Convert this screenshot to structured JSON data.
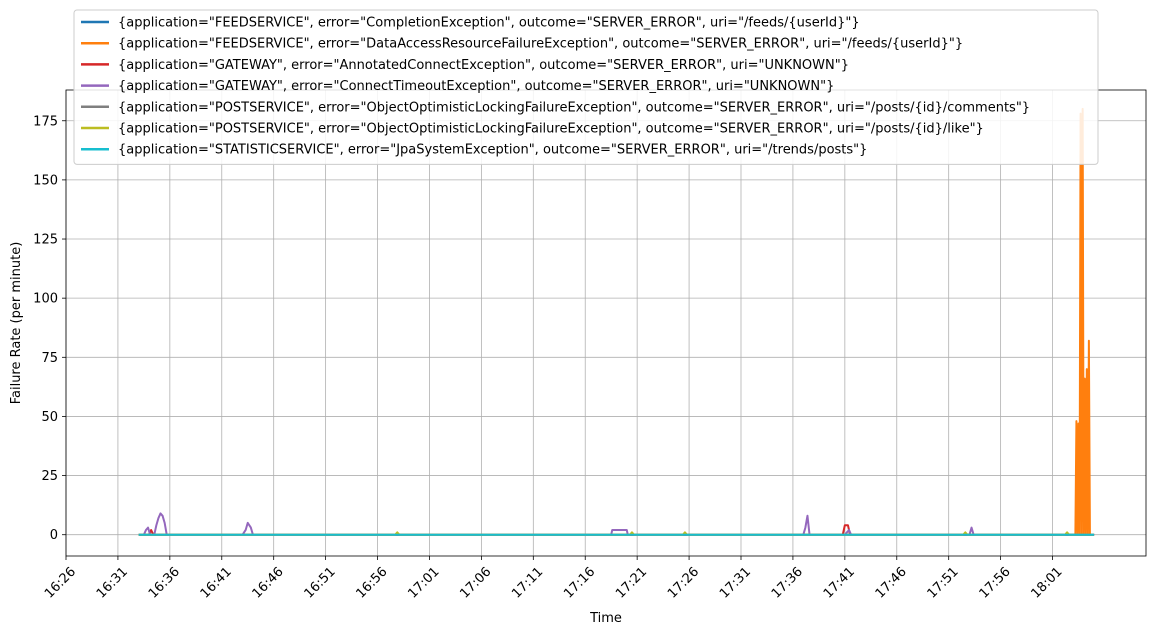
{
  "chart_data": {
    "type": "line",
    "title": "",
    "xlabel": "Time",
    "ylabel": "Failure Rate (per minute)",
    "xlim": [
      "16:26",
      "18:10"
    ],
    "ylim": [
      -9,
      188
    ],
    "grid": true,
    "legend_position": "top-left (above plot)",
    "x_tick_labels": [
      "16:26",
      "16:31",
      "16:36",
      "16:41",
      "16:46",
      "16:51",
      "16:56",
      "17:01",
      "17:06",
      "17:11",
      "17:16",
      "17:21",
      "17:26",
      "17:31",
      "17:36",
      "17:41",
      "17:46",
      "17:51",
      "17:56",
      "18:01"
    ],
    "y_ticks": [
      0,
      25,
      50,
      75,
      100,
      125,
      150,
      175
    ],
    "series": [
      {
        "name": "{application=\"FEEDSERVICE\", error=\"CompletionException\", outcome=\"SERVER_ERROR\", uri=\"/feeds/{userId}\"}",
        "color": "#1f77b4",
        "points": [
          [
            "16:33",
            0
          ],
          [
            "18:05",
            0
          ]
        ]
      },
      {
        "name": "{application=\"FEEDSERVICE\", error=\"DataAccessResourceFailureException\", outcome=\"SERVER_ERROR\", uri=\"/feeds/{userId}\"}",
        "color": "#ff7f0e",
        "points": [
          [
            "16:33",
            0
          ],
          [
            "18:03",
            0
          ],
          [
            "18:03.2",
            0
          ],
          [
            "18:03.3",
            48
          ],
          [
            "18:03.4",
            0
          ],
          [
            "18:03.5",
            47
          ],
          [
            "18:03.6",
            0
          ],
          [
            "18:03.7",
            178
          ],
          [
            "18:03.8",
            0
          ],
          [
            "18:03.9",
            180
          ],
          [
            "18:04",
            0
          ],
          [
            "18:04.1",
            66
          ],
          [
            "18:04.2",
            0
          ],
          [
            "18:04.3",
            70
          ],
          [
            "18:04.4",
            0
          ],
          [
            "18:04.5",
            82
          ],
          [
            "18:04.6",
            0
          ]
        ]
      },
      {
        "name": "{application=\"GATEWAY\", error=\"AnnotatedConnectException\", outcome=\"SERVER_ERROR\", uri=\"UNKNOWN\"}",
        "color": "#d62728",
        "points": [
          [
            "16:33",
            0
          ],
          [
            "16:34",
            0
          ],
          [
            "16:34.2",
            2
          ],
          [
            "16:34.4",
            0
          ],
          [
            "17:40.8",
            0
          ],
          [
            "17:41",
            4
          ],
          [
            "17:41.3",
            4
          ],
          [
            "17:41.5",
            0
          ],
          [
            "18:05",
            0
          ]
        ]
      },
      {
        "name": "{application=\"GATEWAY\", error=\"ConnectTimeoutException\", outcome=\"SERVER_ERROR\", uri=\"UNKNOWN\"}",
        "color": "#9467bd",
        "points": [
          [
            "16:33",
            0
          ],
          [
            "16:33.5",
            0
          ],
          [
            "16:33.7",
            2
          ],
          [
            "16:33.9",
            3
          ],
          [
            "16:34.1",
            0
          ],
          [
            "16:34.5",
            0
          ],
          [
            "16:34.7",
            4
          ],
          [
            "16:34.9",
            7
          ],
          [
            "16:35.1",
            9
          ],
          [
            "16:35.3",
            8
          ],
          [
            "16:35.5",
            5
          ],
          [
            "16:35.7",
            0
          ],
          [
            "16:43",
            0
          ],
          [
            "16:43.3",
            2
          ],
          [
            "16:43.5",
            5
          ],
          [
            "16:43.8",
            3
          ],
          [
            "16:44",
            0
          ],
          [
            "17:18.5",
            0
          ],
          [
            "17:18.6",
            2
          ],
          [
            "17:20",
            2
          ],
          [
            "17:20.1",
            0
          ],
          [
            "17:37",
            0
          ],
          [
            "17:37.2",
            3
          ],
          [
            "17:37.4",
            8
          ],
          [
            "17:37.6",
            0
          ],
          [
            "17:41",
            0
          ],
          [
            "17:41.4",
            2
          ],
          [
            "17:41.6",
            0
          ],
          [
            "17:53",
            0
          ],
          [
            "17:53.2",
            3
          ],
          [
            "17:53.4",
            0
          ],
          [
            "18:05",
            0
          ]
        ]
      },
      {
        "name": "{application=\"POSTSERVICE\", error=\"ObjectOptimisticLockingFailureException\", outcome=\"SERVER_ERROR\", uri=\"/posts/{id}/comments\"}",
        "color": "#7f7f7f",
        "points": [
          [
            "16:33",
            0
          ],
          [
            "18:05",
            0
          ]
        ]
      },
      {
        "name": "{application=\"POSTSERVICE\", error=\"ObjectOptimisticLockingFailureException\", outcome=\"SERVER_ERROR\", uri=\"/posts/{id}/like\"}",
        "color": "#bcbd22",
        "points": [
          [
            "16:33",
            0
          ],
          [
            "16:57.7",
            0
          ],
          [
            "16:57.9",
            1
          ],
          [
            "16:58.1",
            0
          ],
          [
            "17:20.3",
            0
          ],
          [
            "17:20.5",
            1
          ],
          [
            "17:20.7",
            0
          ],
          [
            "17:25.4",
            0
          ],
          [
            "17:25.6",
            1
          ],
          [
            "17:25.8",
            0
          ],
          [
            "17:52.4",
            0
          ],
          [
            "17:52.6",
            1
          ],
          [
            "17:52.8",
            0
          ],
          [
            "18:02.2",
            0
          ],
          [
            "18:02.4",
            1
          ],
          [
            "18:02.6",
            0
          ],
          [
            "18:05",
            0
          ]
        ]
      },
      {
        "name": "{application=\"STATISTICSERVICE\", error=\"JpaSystemException\", outcome=\"SERVER_ERROR\", uri=\"/trends/posts\"}",
        "color": "#17becf",
        "points": [
          [
            "16:33",
            0
          ],
          [
            "18:05",
            0
          ]
        ]
      }
    ]
  }
}
